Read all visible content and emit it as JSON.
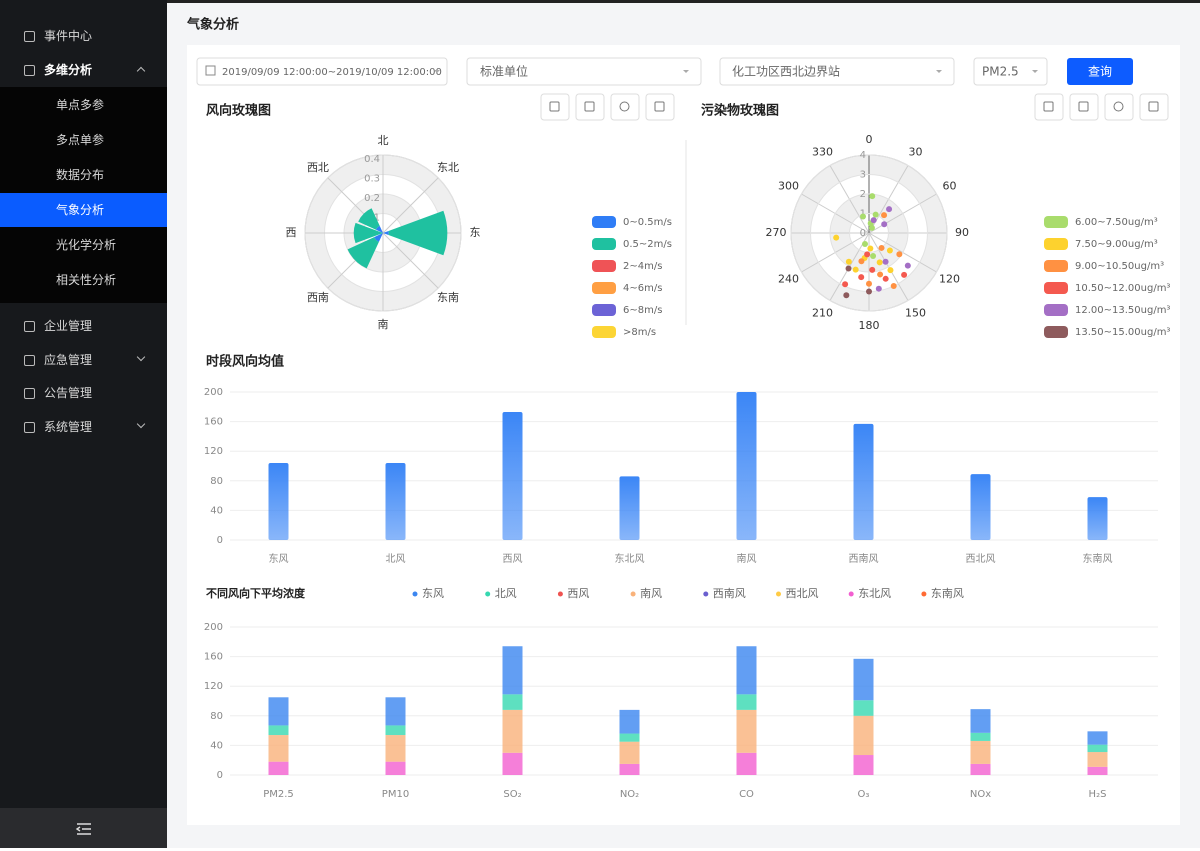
{
  "sidebar": {
    "items": [
      "事件中心",
      "多维分析",
      "企业管理",
      "应急管理",
      "公告管理",
      "系统管理"
    ],
    "submenu": [
      "单点多参",
      "多点单参",
      "数据分布",
      "气象分析",
      "光化学分析",
      "相关性分析"
    ]
  },
  "header": {
    "title": "气象分析"
  },
  "filters": {
    "date_range": "2019/09/09 12:00:00~2019/10/09 12:00:00",
    "unit": "标准单位",
    "station": "化工功区西北边界站",
    "pollutant": "PM2.5",
    "button": "查询"
  },
  "chart_data": [
    {
      "type": "wind_rose",
      "title": "风向玫瑰图",
      "categories": [
        "北",
        "东北",
        "东",
        "东南",
        "南",
        "西南",
        "西",
        "西北"
      ],
      "ylim": [
        0,
        0.4
      ],
      "yticks": [
        0.1,
        0.2,
        0.3,
        0.4
      ],
      "series": [
        {
          "name": "0~0.5m/s",
          "color": "#2f7df6",
          "values": [
            0,
            0,
            0.03,
            0,
            0,
            0.05,
            0,
            0.04
          ]
        },
        {
          "name": "0.5~2m/s",
          "color": "#1fc1a0",
          "values": [
            0,
            0,
            0.3,
            0,
            0,
            0.15,
            0.15,
            0.1
          ]
        },
        {
          "name": "2~4m/s",
          "color": "#ef5356",
          "values": [
            0,
            0,
            0,
            0,
            0,
            0,
            0,
            0
          ]
        },
        {
          "name": "4~6m/s",
          "color": "#ff9f43",
          "values": [
            0,
            0,
            0,
            0,
            0,
            0,
            0,
            0
          ]
        },
        {
          "name": "6~8m/s",
          "color": "#6c63d6",
          "values": [
            0,
            0,
            0,
            0,
            0,
            0,
            0,
            0
          ]
        },
        {
          "name": ">8m/s",
          "color": "#fcd535",
          "values": [
            0,
            0,
            0,
            0,
            0,
            0,
            0,
            0
          ]
        }
      ]
    },
    {
      "type": "polar_scatter",
      "title": "污染物玫瑰图",
      "xlim": [
        0,
        360
      ],
      "xticks": [
        0,
        30,
        60,
        90,
        120,
        150,
        180,
        210,
        240,
        270,
        300,
        330
      ],
      "ylim": [
        0,
        4
      ],
      "yticks": [
        0,
        1,
        2,
        3,
        4
      ],
      "series": [
        {
          "name": "6.00~7.50ug/m³",
          "color": "#a9dc6c",
          "x": [
            20,
            340,
            10,
            200,
            170,
            30,
            5
          ],
          "values": [
            1.0,
            0.9,
            0.5,
            0.6,
            1.2,
            0.3,
            1.9
          ]
        },
        {
          "name": "7.50~9.00ug/m³",
          "color": "#fdd22e",
          "x": [
            262,
            190,
            160,
            200,
            175,
            150,
            215,
            130
          ],
          "values": [
            1.7,
            1.3,
            1.6,
            2.0,
            0.8,
            2.2,
            1.8,
            1.4
          ]
        },
        {
          "name": "9.00~10.50ug/m³",
          "color": "#ff9142",
          "x": [
            140,
            165,
            195,
            125,
            180,
            40,
            155
          ],
          "values": [
            1.0,
            2.2,
            1.5,
            1.9,
            2.6,
            1.2,
            3.0
          ]
        },
        {
          "name": "10.50~12.00ug/m³",
          "color": "#f4594f",
          "x": [
            205,
            175,
            160,
            140,
            190,
            185
          ],
          "values": [
            2.9,
            1.9,
            2.5,
            2.8,
            2.3,
            1.1
          ]
        },
        {
          "name": "12.00~13.50ug/m³",
          "color": "#a46fc5",
          "x": [
            40,
            20,
            130,
            170,
            150,
            60
          ],
          "values": [
            1.6,
            0.7,
            2.6,
            2.9,
            1.7,
            0.9
          ]
        },
        {
          "name": "13.50~15.00ug/m³",
          "color": "#8e5b5d",
          "x": [
            200,
            180,
            210
          ],
          "values": [
            3.4,
            3.0,
            2.1
          ]
        }
      ]
    },
    {
      "type": "bar",
      "title": "时段风向均值",
      "categories": [
        "东风",
        "北风",
        "西风",
        "东北风",
        "南风",
        "西南风",
        "西北风",
        "东南风"
      ],
      "values": [
        104,
        104,
        173,
        86,
        200,
        157,
        89,
        58
      ],
      "color": "#3b86f6",
      "ylim": [
        0,
        200
      ],
      "yticks": [
        0,
        40,
        80,
        120,
        160,
        200
      ],
      "grid": true
    },
    {
      "type": "stacked_bar",
      "title": "不同风向下平均浓度",
      "categories": [
        "PM2.5",
        "PM10",
        "SO₂",
        "NO₂",
        "CO",
        "O₃",
        "NOx",
        "H₂S"
      ],
      "ylim": [
        0,
        200
      ],
      "yticks": [
        0,
        40,
        80,
        120,
        160,
        200
      ],
      "grid": true,
      "series": [
        {
          "name": "东风",
          "color": "#3b86f0",
          "values": [
            38,
            38,
            65,
            32,
            65,
            56,
            32,
            18
          ]
        },
        {
          "name": "北风",
          "color": "#36d8b0",
          "values": [
            13,
            13,
            21,
            11,
            21,
            21,
            11,
            10
          ]
        },
        {
          "name": "西风",
          "color": "#ef5350",
          "values": [
            0,
            0,
            0,
            0,
            0,
            0,
            0,
            0
          ]
        },
        {
          "name": "南风",
          "color": "#f9b27a",
          "values": [
            36,
            36,
            58,
            30,
            58,
            53,
            31,
            20
          ]
        },
        {
          "name": "西南风",
          "color": "#6a5fcf",
          "values": [
            0,
            0,
            0,
            0,
            0,
            0,
            0,
            0
          ]
        },
        {
          "name": "西北风",
          "color": "#ffcb45",
          "values": [
            0,
            0,
            0,
            0,
            0,
            0,
            0,
            0
          ]
        },
        {
          "name": "东北风",
          "color": "#f25fd0",
          "values": [
            18,
            18,
            30,
            15,
            30,
            27,
            15,
            11
          ]
        },
        {
          "name": "东南风",
          "color": "#ff6a33",
          "values": [
            0,
            0,
            0,
            0,
            0,
            0,
            0,
            0
          ]
        }
      ]
    }
  ]
}
